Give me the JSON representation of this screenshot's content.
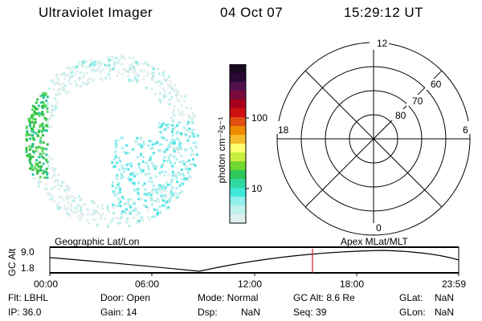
{
  "header": {
    "title": "Ultraviolet Imager",
    "date": "04 Oct 07",
    "time": "15:29:12 UT"
  },
  "colorbar": {
    "unit_label": "photon cm⁻²s⁻¹",
    "ticks": [
      "100",
      "10"
    ],
    "colors": [
      "#1a0a20",
      "#2a0a35",
      "#52104e",
      "#7a0a3a",
      "#a8001a",
      "#cc1010",
      "#e05010",
      "#f08c00",
      "#f5bd2a",
      "#ffff70",
      "#c8ee40",
      "#70d830",
      "#2ec85a",
      "#30d8a0",
      "#40e8d8",
      "#90f0ec",
      "#c0f2ee",
      "#dff0ee"
    ]
  },
  "polar": {
    "labels": {
      "top": "12",
      "bottom": "0",
      "left": "18",
      "right": "6"
    },
    "lat_labels": [
      "80",
      "70",
      "60"
    ]
  },
  "timeline": {
    "left_label": "Geographic Lat/Lon",
    "right_label": "Apex  MLat/MLT",
    "y_axis_title": "GC Alt",
    "y_ticks": [
      "9.0",
      "1.8"
    ],
    "x_ticks": [
      "00:00",
      "06:00",
      "12:00",
      "18:00",
      "23:59"
    ],
    "marker_color": "#cc2222"
  },
  "info": {
    "row1": {
      "flt": "Flt: LBHL",
      "door": "Door: Open",
      "mode": "Mode: Normal",
      "gcalt": "GC Alt: 8.6 Re",
      "glat_label": "GLat:",
      "glat_val": "NaN"
    },
    "row2": {
      "ip": "IP: 36.0",
      "gain": "Gain: 14",
      "dsp_label": "Dsp:",
      "dsp_val": "NaN",
      "seq": "Seq: 39",
      "glon_label": "GLon:",
      "glon_val": "NaN"
    }
  }
}
